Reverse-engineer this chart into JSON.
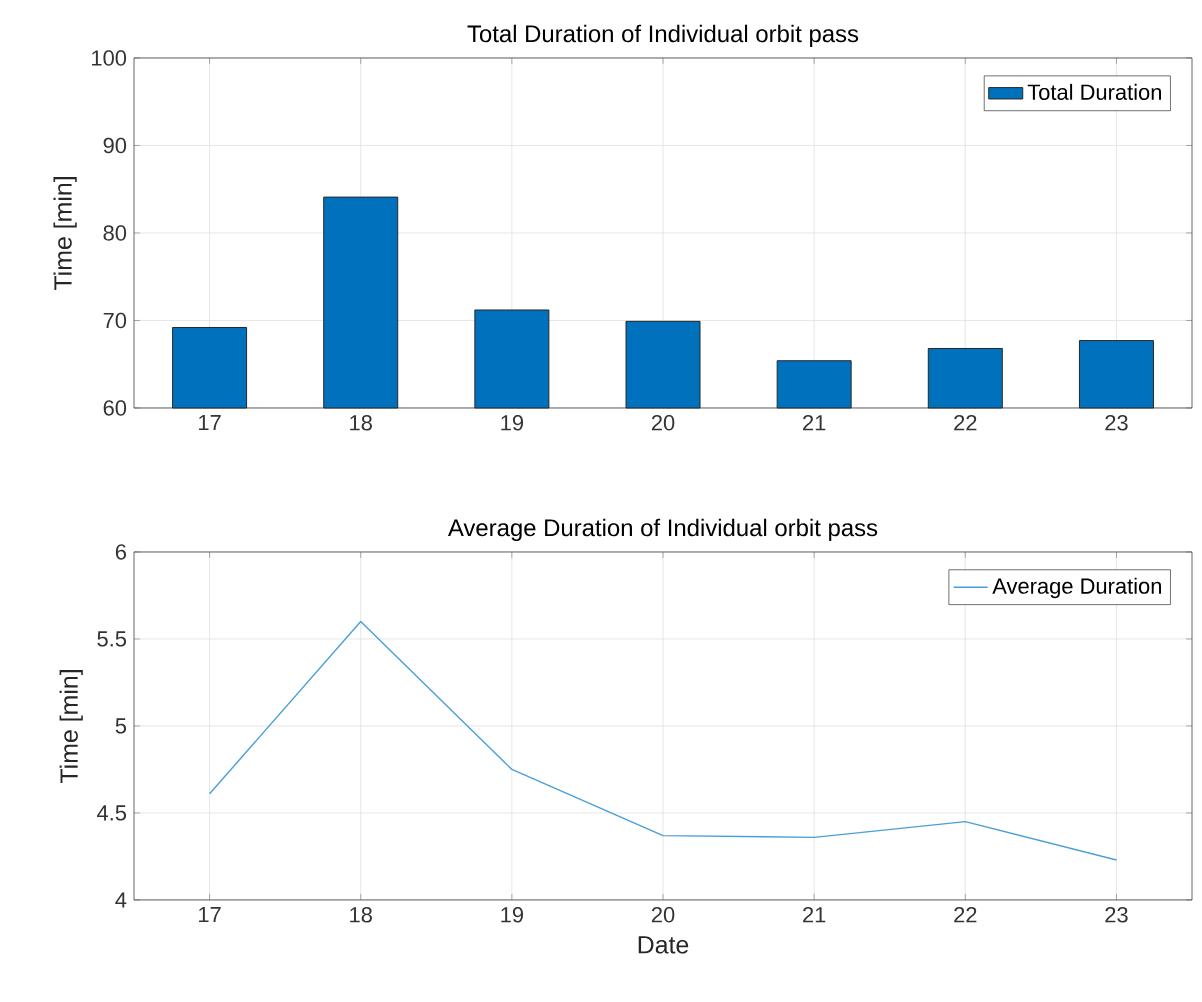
{
  "chart_data": [
    {
      "type": "bar",
      "title": "Total Duration of Individual orbit pass",
      "ylabel": "Time [min]",
      "categories": [
        "17",
        "18",
        "19",
        "20",
        "21",
        "22",
        "23"
      ],
      "series": [
        {
          "name": "Total Duration",
          "color": "#0072bd",
          "values": [
            69.2,
            84.1,
            71.2,
            69.9,
            65.4,
            66.8,
            67.7
          ]
        }
      ],
      "ylim": [
        60,
        100
      ],
      "yticks": [
        60,
        70,
        80,
        90,
        100
      ],
      "grid": true,
      "legend": "top right"
    },
    {
      "type": "line",
      "title": "Average Duration of Individual orbit pass",
      "xlabel": "Date",
      "ylabel": "Time [min]",
      "x": [
        17,
        18,
        19,
        20,
        21,
        22,
        23
      ],
      "series": [
        {
          "name": "Average Duration",
          "color": "#4a9fd8",
          "values": [
            4.61,
            5.6,
            4.75,
            4.37,
            4.36,
            4.45,
            4.23
          ]
        }
      ],
      "xlim": [
        16.5,
        23.5
      ],
      "xticks": [
        17,
        18,
        19,
        20,
        21,
        22,
        23
      ],
      "ylim": [
        4,
        6
      ],
      "yticks": [
        4,
        {
          "value": 4.5,
          "label": "4.5"
        },
        5,
        {
          "value": 5.5,
          "label": "5.5"
        },
        6
      ],
      "grid": true,
      "legend": "top right"
    }
  ]
}
